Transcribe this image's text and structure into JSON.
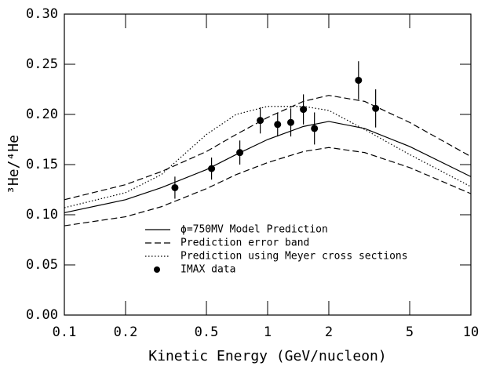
{
  "chart_data": {
    "type": "line",
    "x_label": "Kinetic Energy (GeV/nucleon)",
    "y_label": "³He/⁴He",
    "xscale": "log",
    "xlim": [
      0.1,
      10
    ],
    "ylim": [
      0,
      0.3
    ],
    "xticks": [
      0.1,
      0.2,
      0.5,
      1,
      2,
      5,
      10
    ],
    "yticks": [
      {
        "value": 0,
        "label": "0.00"
      },
      {
        "value": 0.05,
        "label": "0.05"
      },
      {
        "value": 0.1,
        "label": "0.10"
      },
      {
        "value": 0.15,
        "label": "0.15"
      },
      {
        "value": 0.2,
        "label": "0.20"
      },
      {
        "value": 0.25,
        "label": "0.25"
      },
      {
        "value": 0.3,
        "label": "0.30"
      }
    ],
    "legend": "lower left",
    "series": [
      {
        "name": "ϕ=750MV Model Prediction",
        "style": "solid",
        "color": "#000000",
        "x": [
          0.1,
          0.2,
          0.3,
          0.5,
          0.7,
          1,
          1.5,
          2,
          3,
          5,
          10
        ],
        "values": [
          0.102,
          0.115,
          0.127,
          0.145,
          0.16,
          0.175,
          0.188,
          0.193,
          0.186,
          0.168,
          0.138
        ]
      },
      {
        "name": "Prediction error band",
        "style": "dashed",
        "color": "#000000",
        "x": [
          0.1,
          0.2,
          0.3,
          0.5,
          0.7,
          1,
          1.5,
          2,
          3,
          5,
          10
        ],
        "values": [
          0.115,
          0.13,
          0.143,
          0.163,
          0.18,
          0.197,
          0.213,
          0.219,
          0.213,
          0.192,
          0.158
        ],
        "lower": [
          0.089,
          0.098,
          0.108,
          0.126,
          0.14,
          0.152,
          0.163,
          0.167,
          0.162,
          0.147,
          0.121
        ]
      },
      {
        "name": "Prediction using Meyer cross sections",
        "style": "dotted",
        "color": "#000000",
        "x": [
          0.1,
          0.2,
          0.3,
          0.5,
          0.7,
          1,
          1.5,
          2,
          3,
          5,
          10
        ],
        "values": [
          0.107,
          0.122,
          0.14,
          0.18,
          0.2,
          0.208,
          0.208,
          0.204,
          0.185,
          0.16,
          0.128
        ]
      },
      {
        "name": "IMAX data",
        "style": "points",
        "color": "#000000",
        "x": [
          0.35,
          0.53,
          0.73,
          0.92,
          1.12,
          1.3,
          1.5,
          1.7,
          2.8,
          3.4
        ],
        "values": [
          0.127,
          0.146,
          0.162,
          0.194,
          0.19,
          0.192,
          0.205,
          0.186,
          0.234,
          0.206
        ],
        "errors": [
          0.011,
          0.011,
          0.012,
          0.013,
          0.012,
          0.014,
          0.015,
          0.016,
          0.019,
          0.019
        ]
      }
    ]
  }
}
